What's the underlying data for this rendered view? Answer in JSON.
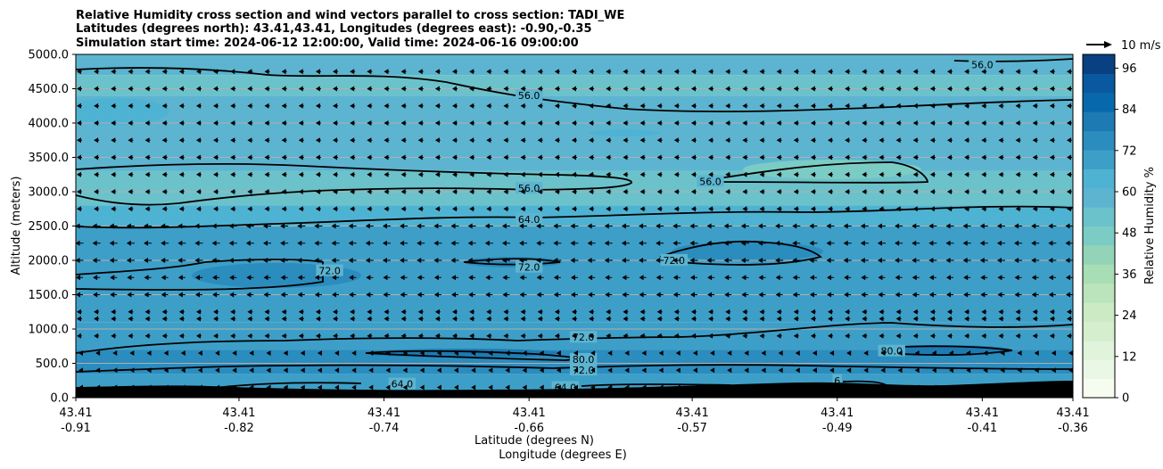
{
  "title_lines": [
    "Relative Humidity cross section and wind vectors parallel to cross section: TADI_WE",
    "Latitudes (degrees north): 43.41,43.41, Longitudes (degrees east): -0.90,-0.35",
    "Simulation start time: 2024-06-12 12:00:00, Valid time: 2024-06-16 09:00:00"
  ],
  "colors": {
    "colormap": [
      "#f7fcf0",
      "#eaf7e4",
      "#e0f3db",
      "#d4eece",
      "#ccebc5",
      "#bbe4bc",
      "#a8ddb5",
      "#93d4b9",
      "#7bccc4",
      "#6cc2ca",
      "#5cb4d0",
      "#4eb3d3",
      "#3d9fc8",
      "#2b8cbe",
      "#1e7ab2",
      "#0868ac",
      "#0a58a0",
      "#084081"
    ],
    "terrain": "#000000",
    "contour": "#000000",
    "grid": "#b0b0b0"
  },
  "chart_data": {
    "type": "heatmap",
    "ylabel": "Altitude (meters)",
    "xlabel_lines": [
      "Latitude (degrees N)",
      "Longitude (degrees E)"
    ],
    "ylim": [
      0,
      5000
    ],
    "y_ticks": [
      "0.0",
      "500.0",
      "1000.0",
      "1500.0",
      "2000.0",
      "2500.0",
      "3000.0",
      "3500.0",
      "4000.0",
      "4500.0",
      "5000.0"
    ],
    "x_ticks": [
      {
        "lat": "43.41",
        "lon": "-0.91"
      },
      {
        "lat": "43.41",
        "lon": "-0.82"
      },
      {
        "lat": "43.41",
        "lon": "-0.74"
      },
      {
        "lat": "43.41",
        "lon": "-0.66"
      },
      {
        "lat": "43.41",
        "lon": "-0.57"
      },
      {
        "lat": "43.41",
        "lon": "-0.49"
      },
      {
        "lat": "43.41",
        "lon": "-0.41"
      },
      {
        "lat": "43.41",
        "lon": "-0.36"
      }
    ],
    "lon_range": [
      -0.91,
      -0.36
    ],
    "grid": "y-only",
    "colorbar": {
      "label": "Relative Humidity %",
      "ticks": [
        "0",
        "12",
        "24",
        "36",
        "48",
        "60",
        "72",
        "84",
        "96"
      ],
      "range": [
        0,
        100
      ]
    },
    "wind_key": {
      "label": "10 m/s",
      "placement": "top-right"
    },
    "layers": [
      {
        "z_range": [
          4700,
          5000
        ],
        "rh": 57
      },
      {
        "z_range": [
          4400,
          4700
        ],
        "rh": 55
      },
      {
        "z_range": [
          3300,
          4400
        ],
        "rh": 61
      },
      {
        "z_range": [
          2800,
          3300
        ],
        "rh": 55
      },
      {
        "z_range": [
          2500,
          2800
        ],
        "rh": 64
      },
      {
        "z_range": [
          1100,
          2500
        ],
        "rh": 70
      },
      {
        "z_range": [
          700,
          1100
        ],
        "rh": 69
      },
      {
        "z_range": [
          350,
          700
        ],
        "rh": 76
      },
      {
        "z_range": [
          0,
          350
        ],
        "rh": 72
      }
    ],
    "contour_labels": [
      {
        "text": "56.0",
        "lon": -0.66,
        "z": 4400
      },
      {
        "text": "56.0",
        "lon": -0.66,
        "z": 3050
      },
      {
        "text": "56.0",
        "lon": -0.56,
        "z": 3150
      },
      {
        "text": "56.0",
        "lon": -0.41,
        "z": 4850
      },
      {
        "text": "64.0",
        "lon": -0.66,
        "z": 2600
      },
      {
        "text": "72.0",
        "lon": -0.77,
        "z": 1850
      },
      {
        "text": "72.0",
        "lon": -0.66,
        "z": 1900
      },
      {
        "text": "72.0",
        "lon": -0.58,
        "z": 2000
      },
      {
        "text": "72.0",
        "lon": -0.63,
        "z": 880
      },
      {
        "text": "72.0",
        "lon": -0.63,
        "z": 400
      },
      {
        "text": "80.0",
        "lon": -0.63,
        "z": 560
      },
      {
        "text": "80.0",
        "lon": -0.46,
        "z": 680
      },
      {
        "text": "64.0",
        "lon": -0.73,
        "z": 200
      },
      {
        "text": "64.0",
        "lon": -0.64,
        "z": 150
      },
      {
        "text": "6",
        "lon": -0.49,
        "z": 250
      }
    ],
    "wind_rows_z": [
      150,
      400,
      650,
      900,
      1150,
      1250,
      1500,
      1750,
      2000,
      2250,
      2500,
      2750,
      3000,
      3250,
      3500,
      3750,
      4000,
      4250,
      4500,
      4750,
      5000
    ]
  }
}
